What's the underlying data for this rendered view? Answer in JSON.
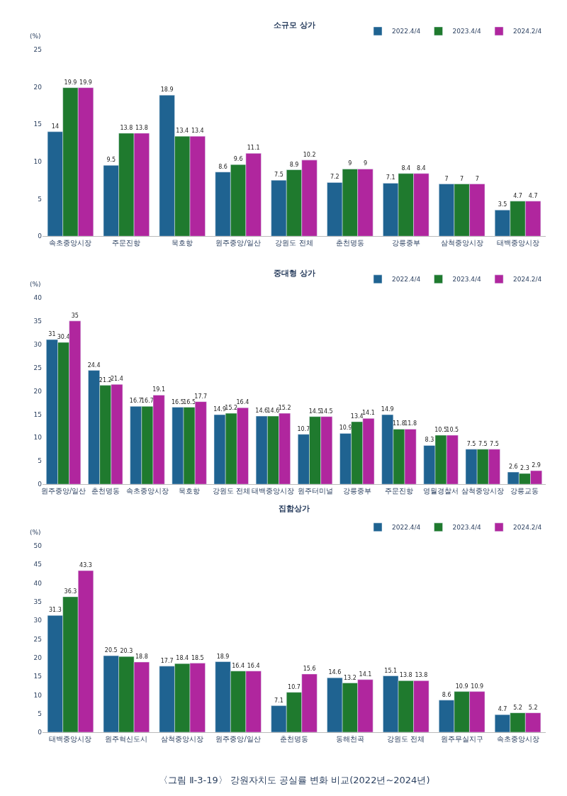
{
  "chart_data": [
    {
      "type": "bar",
      "title": "소규모 상가",
      "ylabel": "(%)",
      "categories": [
        "속초중앙시장",
        "주문진항",
        "묵호항",
        "원주중앙/일산",
        "강원도 전체",
        "춘천명동",
        "강릉중부",
        "삼척중앙시장",
        "태백중앙시장"
      ],
      "series": [
        {
          "name": "2022.4/4",
          "color": "#1f6391",
          "values": [
            14,
            9.5,
            18.9,
            8.6,
            7.5,
            7.2,
            7.1,
            7,
            3.5
          ]
        },
        {
          "name": "2023.4/4",
          "color": "#1f7a2e",
          "values": [
            19.9,
            13.8,
            13.4,
            9.6,
            8.9,
            9,
            8.4,
            7,
            4.7
          ]
        },
        {
          "name": "2024.2/4",
          "color": "#b0269e",
          "values": [
            19.9,
            13.8,
            13.4,
            11.1,
            10.2,
            9,
            8.4,
            7,
            4.7
          ]
        }
      ],
      "ylim": [
        0,
        25
      ],
      "yticks": [
        0,
        5,
        10,
        15,
        20,
        25
      ],
      "data_labels": true,
      "legend": "top right"
    },
    {
      "type": "bar",
      "title": "중대형 상가",
      "ylabel": "(%)",
      "categories": [
        "원주중앙/일산",
        "춘천명동",
        "속초중앙시장",
        "묵호항",
        "강원도 전체",
        "태백중앙시장",
        "원주터미널",
        "강릉중부",
        "주문진항",
        "영월경찰서",
        "삼척중앙시장",
        "강릉교동"
      ],
      "series": [
        {
          "name": "2022.4/4",
          "color": "#1f6391",
          "values": [
            31,
            24.4,
            16.7,
            16.5,
            14.9,
            14.6,
            10.7,
            10.9,
            14.9,
            8.3,
            7.5,
            2.6
          ]
        },
        {
          "name": "2023.4/4",
          "color": "#1f7a2e",
          "values": [
            30.4,
            21.2,
            16.7,
            16.5,
            15.2,
            14.6,
            14.5,
            13.4,
            11.8,
            10.5,
            7.5,
            2.3
          ]
        },
        {
          "name": "2024.2/4",
          "color": "#b0269e",
          "values": [
            35,
            21.4,
            19.1,
            17.7,
            16.4,
            15.2,
            14.5,
            14.1,
            11.8,
            10.5,
            7.5,
            2.9
          ]
        }
      ],
      "ylim": [
        0,
        40
      ],
      "yticks": [
        0,
        5,
        10,
        15,
        20,
        25,
        30,
        35,
        40
      ],
      "data_labels": true,
      "legend": "top right"
    },
    {
      "type": "bar",
      "title": "집합상가",
      "ylabel": "(%)",
      "categories": [
        "태백중앙시장",
        "원주혁신도시",
        "삼척중앙시장",
        "원주중앙/일산",
        "춘천명동",
        "동해천곡",
        "강원도 전체",
        "원주무실지구",
        "속초중앙시장"
      ],
      "series": [
        {
          "name": "2022.4/4",
          "color": "#1f6391",
          "values": [
            31.3,
            20.5,
            17.7,
            18.9,
            7.1,
            14.6,
            15.1,
            8.6,
            4.7
          ]
        },
        {
          "name": "2023.4/4",
          "color": "#1f7a2e",
          "values": [
            36.3,
            20.3,
            18.4,
            16.4,
            10.7,
            13.2,
            13.8,
            10.9,
            5.2
          ]
        },
        {
          "name": "2024.2/4",
          "color": "#b0269e",
          "values": [
            43.3,
            18.8,
            18.5,
            16.4,
            15.6,
            14.1,
            13.8,
            10.9,
            5.2
          ]
        }
      ],
      "ylim": [
        0,
        50
      ],
      "yticks": [
        0,
        5,
        10,
        15,
        20,
        25,
        30,
        35,
        40,
        45,
        50
      ],
      "data_labels": true,
      "legend": "top right",
      "annotations": [
        "〈그림 Ⅱ-3-19〉 강원자치도 공실률 변화 비교(2022년~2024년)"
      ]
    }
  ]
}
